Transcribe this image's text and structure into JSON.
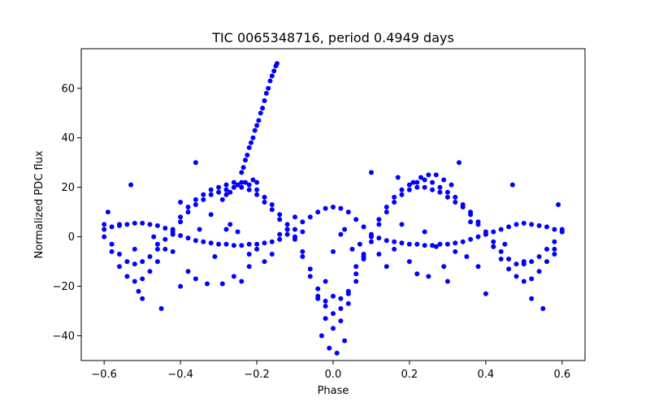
{
  "chart_data": {
    "type": "scatter",
    "title": "TIC 0065348716, period 0.4949 days",
    "xlabel": "Phase",
    "ylabel": "Normalized PDC flux",
    "xlim": [
      -0.66,
      0.66
    ],
    "ylim": [
      -50,
      76
    ],
    "xticks": [
      -0.6,
      -0.4,
      -0.2,
      0.0,
      0.2,
      0.4,
      0.6
    ],
    "xtick_labels": [
      "−0.6",
      "−0.4",
      "−0.2",
      "0.0",
      "0.2",
      "0.4",
      "0.6"
    ],
    "yticks": [
      -40,
      -20,
      0,
      20,
      40,
      60
    ],
    "ytick_labels": [
      "−40",
      "−20",
      "0",
      "20",
      "40",
      "60"
    ],
    "grid": false,
    "marker_color": "#0000ff",
    "series": [
      {
        "points": [
          [
            -0.6,
            5
          ],
          [
            -0.58,
            -6
          ],
          [
            -0.56,
            -12
          ],
          [
            -0.54,
            -16
          ],
          [
            -0.52,
            -18
          ],
          [
            -0.5,
            -17
          ],
          [
            -0.48,
            -14
          ],
          [
            -0.46,
            -10
          ],
          [
            -0.44,
            -5
          ],
          [
            -0.42,
            1
          ],
          [
            -0.4,
            6
          ],
          [
            -0.38,
            10
          ],
          [
            -0.36,
            13
          ],
          [
            -0.34,
            15
          ],
          [
            -0.32,
            17
          ],
          [
            -0.3,
            18
          ],
          [
            -0.28,
            19
          ],
          [
            -0.26,
            20
          ],
          [
            -0.24,
            20
          ],
          [
            -0.22,
            19
          ],
          [
            -0.2,
            17
          ],
          [
            -0.18,
            14
          ],
          [
            -0.16,
            11
          ],
          [
            -0.14,
            7
          ],
          [
            -0.12,
            3
          ],
          [
            -0.1,
            -1
          ],
          [
            -0.08,
            -8
          ],
          [
            -0.06,
            -16
          ],
          [
            -0.04,
            -25
          ],
          [
            -0.02,
            -33
          ],
          [
            0.0,
            -37
          ],
          [
            0.02,
            -34
          ],
          [
            0.04,
            -27
          ],
          [
            0.06,
            -18
          ],
          [
            0.08,
            -9
          ],
          [
            0.1,
            -2
          ],
          [
            0.12,
            5
          ],
          [
            0.14,
            10
          ],
          [
            0.16,
            14
          ],
          [
            0.18,
            17
          ],
          [
            0.2,
            19
          ],
          [
            0.22,
            20
          ],
          [
            0.24,
            20
          ],
          [
            0.26,
            19
          ],
          [
            0.28,
            18
          ],
          [
            0.3,
            16
          ],
          [
            0.32,
            14
          ],
          [
            0.34,
            12
          ],
          [
            0.36,
            9
          ],
          [
            0.38,
            5
          ],
          [
            0.4,
            1
          ],
          [
            0.42,
            -4
          ],
          [
            0.44,
            -9
          ],
          [
            0.46,
            -13
          ],
          [
            0.48,
            -16
          ],
          [
            0.5,
            -18
          ],
          [
            0.52,
            -17
          ],
          [
            0.54,
            -14
          ],
          [
            0.56,
            -10
          ],
          [
            0.58,
            -5
          ],
          [
            0.6,
            2
          ],
          [
            -0.6,
            0
          ],
          [
            -0.58,
            -3
          ],
          [
            -0.56,
            -7
          ],
          [
            -0.54,
            -10
          ],
          [
            -0.52,
            -11
          ],
          [
            -0.5,
            -10
          ],
          [
            -0.48,
            -8
          ],
          [
            -0.46,
            -5
          ],
          [
            -0.44,
            -1
          ],
          [
            -0.42,
            3
          ],
          [
            -0.4,
            8
          ],
          [
            -0.38,
            12
          ],
          [
            -0.36,
            15
          ],
          [
            -0.34,
            17
          ],
          [
            -0.32,
            19
          ],
          [
            -0.3,
            20
          ],
          [
            -0.28,
            21
          ],
          [
            -0.26,
            22
          ],
          [
            -0.24,
            22
          ],
          [
            -0.22,
            21
          ],
          [
            -0.2,
            19
          ],
          [
            -0.18,
            16
          ],
          [
            -0.16,
            13
          ],
          [
            -0.14,
            9
          ],
          [
            -0.12,
            5
          ],
          [
            -0.1,
            0
          ],
          [
            -0.08,
            -6
          ],
          [
            -0.06,
            -13
          ],
          [
            -0.04,
            -21
          ],
          [
            -0.02,
            -28
          ],
          [
            0.0,
            -31
          ],
          [
            0.02,
            -29
          ],
          [
            0.04,
            -23
          ],
          [
            0.06,
            -15
          ],
          [
            0.08,
            -7
          ],
          [
            0.1,
            0
          ],
          [
            0.12,
            7
          ],
          [
            0.14,
            12
          ],
          [
            0.16,
            16
          ],
          [
            0.18,
            19
          ],
          [
            0.2,
            21
          ],
          [
            0.22,
            22
          ],
          [
            0.24,
            23
          ],
          [
            0.26,
            22
          ],
          [
            0.28,
            20
          ],
          [
            0.3,
            18
          ],
          [
            0.32,
            16
          ],
          [
            0.34,
            13
          ],
          [
            0.36,
            10
          ],
          [
            0.38,
            6
          ],
          [
            0.4,
            2
          ],
          [
            0.42,
            -2
          ],
          [
            0.44,
            -6
          ],
          [
            0.46,
            -9
          ],
          [
            0.48,
            -11
          ],
          [
            0.5,
            -11
          ],
          [
            0.52,
            -10
          ],
          [
            0.54,
            -8
          ],
          [
            0.56,
            -5
          ],
          [
            0.58,
            -2
          ],
          [
            0.6,
            3
          ],
          [
            -0.6,
            3
          ],
          [
            -0.58,
            4
          ],
          [
            -0.56,
            4.5
          ],
          [
            -0.54,
            5
          ],
          [
            -0.52,
            5.5
          ],
          [
            -0.5,
            5.5
          ],
          [
            -0.48,
            5
          ],
          [
            -0.46,
            4.5
          ],
          [
            -0.44,
            3.5
          ],
          [
            -0.42,
            2
          ],
          [
            -0.4,
            0.5
          ],
          [
            -0.38,
            -0.5
          ],
          [
            -0.36,
            -1.5
          ],
          [
            -0.34,
            -2
          ],
          [
            -0.32,
            -2.5
          ],
          [
            -0.3,
            -3
          ],
          [
            -0.28,
            -3
          ],
          [
            -0.26,
            -3.5
          ],
          [
            -0.24,
            -3.5
          ],
          [
            -0.22,
            -3
          ],
          [
            -0.2,
            -3
          ],
          [
            -0.18,
            -2.5
          ],
          [
            -0.16,
            -2
          ],
          [
            -0.14,
            -1
          ],
          [
            -0.12,
            1
          ],
          [
            -0.1,
            3
          ],
          [
            -0.08,
            6
          ],
          [
            -0.06,
            8
          ],
          [
            -0.04,
            10
          ],
          [
            -0.02,
            11.5
          ],
          [
            0.0,
            12
          ],
          [
            0.02,
            11.5
          ],
          [
            0.04,
            10
          ],
          [
            0.06,
            7
          ],
          [
            0.08,
            4
          ],
          [
            0.1,
            1
          ],
          [
            0.12,
            -0.5
          ],
          [
            0.14,
            -1.5
          ],
          [
            0.16,
            -2
          ],
          [
            0.18,
            -2.5
          ],
          [
            0.2,
            -3
          ],
          [
            0.22,
            -3
          ],
          [
            0.24,
            -3.5
          ],
          [
            0.26,
            -3.5
          ],
          [
            0.28,
            -3
          ],
          [
            0.3,
            -3
          ],
          [
            0.32,
            -2.5
          ],
          [
            0.34,
            -2
          ],
          [
            0.36,
            -1
          ],
          [
            0.38,
            0
          ],
          [
            0.4,
            1
          ],
          [
            0.42,
            2
          ],
          [
            0.44,
            3
          ],
          [
            0.46,
            4
          ],
          [
            0.48,
            5
          ],
          [
            0.5,
            5.5
          ],
          [
            0.52,
            5
          ],
          [
            0.54,
            4.5
          ],
          [
            0.56,
            4
          ],
          [
            0.58,
            3
          ],
          [
            0.6,
            2
          ],
          [
            -0.29,
            15
          ],
          [
            -0.28,
            17
          ],
          [
            -0.27,
            18
          ],
          [
            -0.25,
            21
          ],
          [
            -0.23,
            22
          ],
          [
            -0.21,
            23
          ],
          [
            -0.2,
            22
          ],
          [
            0.21,
            22
          ],
          [
            0.23,
            24
          ],
          [
            0.25,
            25
          ],
          [
            0.27,
            25
          ],
          [
            0.29,
            23
          ],
          [
            0.31,
            21
          ],
          [
            -0.03,
            -40
          ],
          [
            -0.01,
            -45
          ],
          [
            0.01,
            -47
          ],
          [
            0.03,
            -42
          ],
          [
            -0.02,
            -26
          ],
          [
            0.02,
            -25
          ],
          [
            0.0,
            -24
          ],
          [
            -0.24,
            26
          ],
          [
            -0.235,
            28
          ],
          [
            -0.23,
            31
          ],
          [
            -0.225,
            33
          ],
          [
            -0.22,
            36
          ],
          [
            -0.215,
            38
          ],
          [
            -0.21,
            40
          ],
          [
            -0.205,
            43
          ],
          [
            -0.2,
            45
          ],
          [
            -0.195,
            47
          ],
          [
            -0.19,
            50
          ],
          [
            -0.185,
            52
          ],
          [
            -0.18,
            55
          ],
          [
            -0.175,
            58
          ],
          [
            -0.17,
            60
          ],
          [
            -0.165,
            63
          ],
          [
            -0.16,
            65
          ],
          [
            -0.155,
            67
          ],
          [
            -0.15,
            69
          ],
          [
            -0.147,
            70
          ],
          [
            -0.59,
            10
          ],
          [
            -0.56,
            5
          ],
          [
            -0.52,
            -5
          ],
          [
            -0.51,
            -22
          ],
          [
            -0.5,
            -25
          ],
          [
            -0.45,
            -29
          ],
          [
            -0.4,
            -20
          ],
          [
            -0.38,
            -14
          ],
          [
            -0.36,
            -17
          ],
          [
            -0.35,
            3
          ],
          [
            -0.33,
            -19
          ],
          [
            -0.32,
            9
          ],
          [
            -0.31,
            -8
          ],
          [
            -0.29,
            -19
          ],
          [
            -0.27,
            5
          ],
          [
            -0.26,
            -16
          ],
          [
            -0.25,
            2
          ],
          [
            -0.24,
            -18
          ],
          [
            -0.22,
            -12
          ],
          [
            -0.22,
            -7
          ],
          [
            -0.2,
            -5
          ],
          [
            -0.18,
            -10
          ],
          [
            -0.16,
            -7
          ],
          [
            -0.14,
            1
          ],
          [
            -0.12,
            3
          ],
          [
            -0.1,
            8
          ],
          [
            -0.08,
            2
          ],
          [
            -0.47,
            0
          ],
          [
            -0.46,
            -3
          ],
          [
            -0.42,
            -6
          ],
          [
            -0.53,
            21
          ],
          [
            -0.36,
            30
          ],
          [
            -0.4,
            14
          ],
          [
            -0.28,
            3
          ],
          [
            0.0,
            -6
          ],
          [
            0.02,
            1
          ],
          [
            0.03,
            3
          ],
          [
            0.05,
            -5
          ],
          [
            0.07,
            -3
          ],
          [
            0.08,
            -8
          ],
          [
            0.1,
            26
          ],
          [
            0.12,
            -7
          ],
          [
            0.14,
            -12
          ],
          [
            0.16,
            -5
          ],
          [
            0.18,
            5
          ],
          [
            0.2,
            -10
          ],
          [
            0.22,
            -15
          ],
          [
            0.24,
            2
          ],
          [
            0.25,
            -16
          ],
          [
            0.27,
            -4
          ],
          [
            0.29,
            -12
          ],
          [
            0.3,
            -18
          ],
          [
            0.32,
            -6
          ],
          [
            0.35,
            -8
          ],
          [
            0.36,
            6
          ],
          [
            0.38,
            -12
          ],
          [
            0.4,
            -23
          ],
          [
            0.42,
            -4
          ],
          [
            0.45,
            -3
          ],
          [
            0.47,
            21
          ],
          [
            0.5,
            -10
          ],
          [
            0.52,
            -25
          ],
          [
            0.55,
            -29
          ],
          [
            0.58,
            -7
          ],
          [
            0.59,
            13
          ],
          [
            0.33,
            30
          ],
          [
            0.17,
            24
          ],
          [
            -0.02,
            -18
          ],
          [
            -0.04,
            -24
          ],
          [
            0.04,
            -22
          ],
          [
            0.06,
            -12
          ]
        ]
      }
    ]
  }
}
